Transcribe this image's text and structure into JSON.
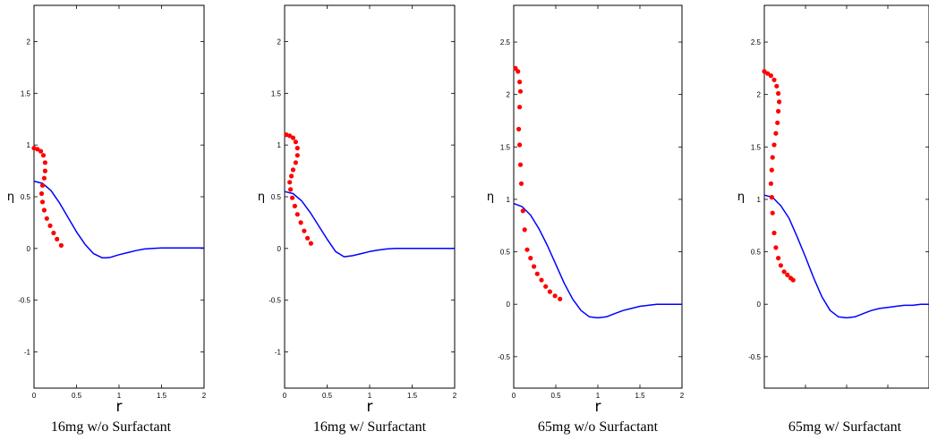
{
  "colors": {
    "sim_line": "#0000ff",
    "exp_points": "#ff0000",
    "axes": "#000000"
  },
  "chart_data": [
    {
      "type": "line",
      "caption": "16mg w/o Surfactant",
      "xlabel": "r",
      "ylabel": "η",
      "xlim": [
        0,
        2
      ],
      "ylim": [
        -1.35,
        2.35
      ],
      "xticks": [
        0,
        0.5,
        1,
        1.5,
        2
      ],
      "xtick_labels": [
        "0",
        "0.5",
        "1",
        "1.5",
        "2"
      ],
      "yticks": [
        -1,
        -0.5,
        0,
        0.5,
        1,
        1.5,
        2
      ],
      "ytick_labels": [
        "-1",
        "-0.5",
        "0",
        "0.5",
        "1",
        "1.5",
        "2"
      ],
      "series": [
        {
          "kind": "line",
          "x": [
            0,
            0.1,
            0.2,
            0.3,
            0.4,
            0.5,
            0.6,
            0.7,
            0.8,
            0.85,
            0.9,
            1.0,
            1.1,
            1.2,
            1.3,
            1.4,
            1.5,
            1.6,
            1.7,
            1.8,
            1.9,
            2.0
          ],
          "y": [
            0.65,
            0.63,
            0.56,
            0.44,
            0.3,
            0.16,
            0.04,
            -0.05,
            -0.09,
            -0.09,
            -0.085,
            -0.06,
            -0.04,
            -0.02,
            -0.005,
            0.0,
            0.005,
            0.005,
            0.005,
            0.005,
            0.005,
            0.005
          ]
        },
        {
          "kind": "scatter",
          "x": [
            0.0,
            0.04,
            0.08,
            0.11,
            0.13,
            0.13,
            0.12,
            0.1,
            0.09,
            0.1,
            0.12,
            0.15,
            0.19,
            0.23,
            0.27,
            0.32
          ],
          "y": [
            0.97,
            0.96,
            0.94,
            0.9,
            0.83,
            0.75,
            0.68,
            0.61,
            0.53,
            0.45,
            0.37,
            0.29,
            0.22,
            0.15,
            0.09,
            0.03
          ]
        }
      ]
    },
    {
      "type": "line",
      "caption": "16mg w/ Surfactant",
      "xlabel": "r",
      "ylabel": "η",
      "xlim": [
        0,
        2
      ],
      "ylim": [
        -1.35,
        2.35
      ],
      "xticks": [
        0,
        0.5,
        1,
        1.5,
        2
      ],
      "xtick_labels": [
        "0",
        "0.5",
        "1",
        "1.5",
        "2"
      ],
      "yticks": [
        -1,
        -0.5,
        0,
        0.5,
        1,
        1.5,
        2
      ],
      "ytick_labels": [
        "-1",
        "-0.5",
        "0",
        "0.5",
        "1",
        "1.5",
        "2"
      ],
      "series": [
        {
          "kind": "line",
          "x": [
            0,
            0.1,
            0.2,
            0.3,
            0.4,
            0.5,
            0.6,
            0.7,
            0.8,
            0.9,
            1.0,
            1.1,
            1.2,
            1.3,
            1.4,
            1.5,
            1.6,
            1.7,
            1.8,
            1.9,
            2.0
          ],
          "y": [
            0.55,
            0.53,
            0.46,
            0.35,
            0.22,
            0.09,
            -0.03,
            -0.08,
            -0.07,
            -0.05,
            -0.03,
            -0.015,
            -0.005,
            0.0,
            0.0,
            0.0,
            0.0,
            0.0,
            0.0,
            0.0,
            0.0
          ]
        },
        {
          "kind": "scatter",
          "x": [
            0.02,
            0.06,
            0.1,
            0.13,
            0.15,
            0.15,
            0.13,
            0.1,
            0.08,
            0.06,
            0.07,
            0.09,
            0.12,
            0.15,
            0.19,
            0.23,
            0.27,
            0.31
          ],
          "y": [
            1.1,
            1.09,
            1.07,
            1.03,
            0.97,
            0.9,
            0.83,
            0.76,
            0.7,
            0.64,
            0.57,
            0.49,
            0.41,
            0.33,
            0.25,
            0.17,
            0.1,
            0.05
          ]
        }
      ]
    },
    {
      "type": "line",
      "caption": "65mg w/o Surfactant",
      "xlabel": "r",
      "ylabel": "η",
      "xlim": [
        0,
        2
      ],
      "ylim": [
        -0.8,
        2.85
      ],
      "xticks": [
        0,
        0.5,
        1,
        1.5,
        2
      ],
      "xtick_labels": [
        "0",
        "0.5",
        "1",
        "1.5",
        "2"
      ],
      "yticks": [
        -0.5,
        0,
        0.5,
        1,
        1.5,
        2,
        2.5
      ],
      "ytick_labels": [
        "-0.5",
        "0",
        "0.5",
        "1",
        "1.5",
        "2",
        "2.5"
      ],
      "series": [
        {
          "kind": "line",
          "x": [
            0,
            0.1,
            0.2,
            0.3,
            0.4,
            0.5,
            0.6,
            0.7,
            0.8,
            0.9,
            1.0,
            1.1,
            1.2,
            1.3,
            1.4,
            1.5,
            1.6,
            1.7,
            1.8,
            1.9,
            2.0
          ],
          "y": [
            0.96,
            0.93,
            0.85,
            0.72,
            0.56,
            0.38,
            0.2,
            0.05,
            -0.06,
            -0.12,
            -0.13,
            -0.12,
            -0.09,
            -0.06,
            -0.04,
            -0.02,
            -0.01,
            0.0,
            0.0,
            0.0,
            0.0
          ]
        },
        {
          "kind": "scatter",
          "x": [
            0.02,
            0.05,
            0.07,
            0.08,
            0.07,
            0.06,
            0.07,
            0.08,
            0.09,
            0.11,
            0.13,
            0.16,
            0.2,
            0.24,
            0.28,
            0.33,
            0.38,
            0.43,
            0.49,
            0.55
          ],
          "y": [
            2.25,
            2.22,
            2.12,
            2.03,
            1.88,
            1.67,
            1.52,
            1.33,
            1.15,
            0.89,
            0.71,
            0.52,
            0.44,
            0.36,
            0.29,
            0.23,
            0.17,
            0.12,
            0.08,
            0.05
          ]
        }
      ]
    },
    {
      "type": "line",
      "caption": "65mg w/ Surfactant",
      "xlabel": "",
      "ylabel": "η",
      "xlim": [
        0,
        2
      ],
      "ylim": [
        -0.8,
        2.85
      ],
      "xticks": [
        0,
        0.5,
        1,
        1.5,
        2
      ],
      "xtick_labels": [],
      "yticks": [
        -0.5,
        0,
        0.5,
        1,
        1.5,
        2,
        2.5
      ],
      "ytick_labels": [
        "-0.5",
        "0",
        "0.5",
        "1",
        "1.5",
        "2",
        "2.5"
      ],
      "series": [
        {
          "kind": "line",
          "x": [
            0,
            0.1,
            0.2,
            0.3,
            0.4,
            0.5,
            0.6,
            0.7,
            0.8,
            0.9,
            1.0,
            1.1,
            1.2,
            1.3,
            1.4,
            1.5,
            1.6,
            1.7,
            1.8,
            1.9,
            2.0
          ],
          "y": [
            1.04,
            1.02,
            0.94,
            0.82,
            0.64,
            0.45,
            0.25,
            0.07,
            -0.06,
            -0.12,
            -0.13,
            -0.12,
            -0.09,
            -0.06,
            -0.04,
            -0.03,
            -0.02,
            -0.01,
            -0.01,
            0.0,
            0.0
          ]
        },
        {
          "kind": "scatter",
          "x": [
            0.0,
            0.04,
            0.08,
            0.12,
            0.15,
            0.17,
            0.18,
            0.17,
            0.16,
            0.14,
            0.12,
            0.1,
            0.09,
            0.08,
            0.09,
            0.1,
            0.12,
            0.14,
            0.17,
            0.2,
            0.24,
            0.28,
            0.32,
            0.35
          ],
          "y": [
            2.22,
            2.2,
            2.18,
            2.14,
            2.08,
            2.01,
            1.93,
            1.84,
            1.73,
            1.63,
            1.52,
            1.4,
            1.28,
            1.15,
            1.02,
            0.87,
            0.68,
            0.54,
            0.44,
            0.37,
            0.31,
            0.28,
            0.25,
            0.23
          ]
        }
      ]
    }
  ]
}
